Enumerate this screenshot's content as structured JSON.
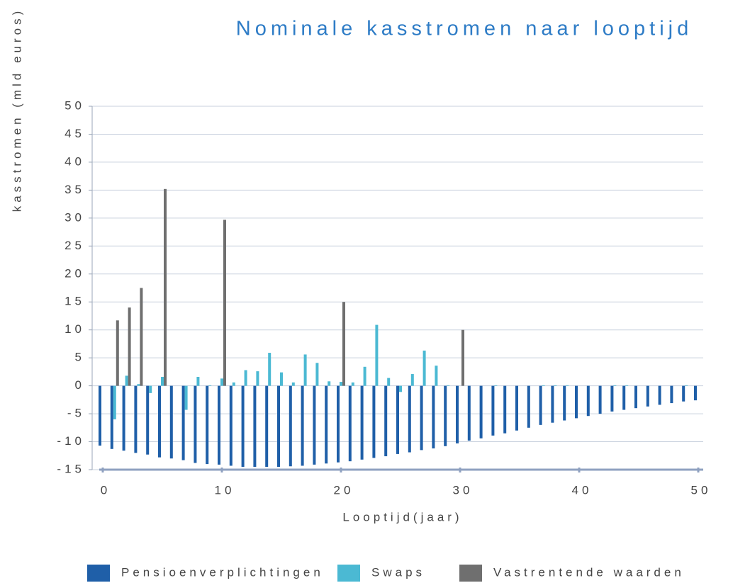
{
  "chart_data": {
    "type": "bar",
    "title": "Nominale kasstromen naar looptijd",
    "xlabel": "Looptijd(jaar)",
    "ylabel": "kasstromen (mld euros)",
    "x": [
      0,
      1,
      2,
      3,
      4,
      5,
      6,
      7,
      8,
      9,
      10,
      11,
      12,
      13,
      14,
      15,
      16,
      17,
      18,
      19,
      20,
      21,
      22,
      23,
      24,
      25,
      26,
      27,
      28,
      29,
      30,
      31,
      32,
      33,
      34,
      35,
      36,
      37,
      38,
      39,
      40,
      41,
      42,
      43,
      44,
      45,
      46,
      47,
      48,
      49,
      50
    ],
    "series": [
      {
        "name": "Pensioenverplichtingen",
        "color": "#1f5fa8",
        "values": [
          -10.7,
          -11.3,
          -11.6,
          -12,
          -12.3,
          -12.8,
          -13,
          -13.3,
          -13.8,
          -14,
          -14.1,
          -14.3,
          -14.5,
          -14.5,
          -14.5,
          -14.5,
          -14.4,
          -14.3,
          -14.1,
          -13.9,
          -13.7,
          -13.5,
          -13.2,
          -12.9,
          -12.6,
          -12.2,
          -11.9,
          -11.5,
          -11.2,
          -10.8,
          -10.3,
          -9.8,
          -9.4,
          -8.9,
          -8.5,
          -8,
          -7.5,
          -7,
          -6.6,
          -6.2,
          -5.8,
          -5.4,
          -5,
          -4.6,
          -4.3,
          -4,
          -3.7,
          -3.4,
          -3.1,
          -2.8,
          -2.6
        ]
      },
      {
        "name": "Swaps",
        "color": "#4bb9d3",
        "values": [
          0,
          -6,
          1.8,
          0.3,
          -1.3,
          1.6,
          0,
          -4.3,
          1.6,
          0.1,
          1.3,
          0.6,
          2.8,
          2.6,
          5.9,
          2.4,
          0.6,
          5.6,
          4.1,
          0.8,
          0.7,
          0.6,
          3.4,
          10.9,
          1.4,
          -1.1,
          2.1,
          6.3,
          3.6,
          0.1,
          0,
          0,
          0,
          0.1,
          0,
          0,
          0,
          0.1,
          0.1,
          0.1,
          0,
          0,
          0,
          0.1,
          0.1,
          0,
          0,
          0,
          0,
          0.1,
          0
        ]
      },
      {
        "name": "Vastrentende waarden",
        "color": "#6f6f6f",
        "values": [
          0,
          11.7,
          14,
          17.5,
          0,
          35.2,
          0,
          0,
          0,
          0,
          29.7,
          0,
          0,
          0,
          0,
          0,
          0,
          0,
          0,
          0,
          15,
          0,
          0,
          0,
          0,
          0,
          0,
          0,
          0,
          0,
          10,
          0,
          0,
          0,
          0,
          0,
          0,
          0,
          0,
          0,
          0,
          0,
          0,
          0,
          0,
          0,
          0,
          0,
          0,
          0,
          0
        ]
      }
    ],
    "xlim": [
      0,
      50
    ],
    "xticks": [
      0,
      10,
      20,
      30,
      40,
      50
    ],
    "ylim": [
      -15,
      50
    ],
    "yticks": [
      -15,
      -10,
      -5,
      0,
      5,
      10,
      15,
      20,
      25,
      30,
      35,
      40,
      45,
      50
    ],
    "grid": true,
    "legend": "bottom"
  }
}
